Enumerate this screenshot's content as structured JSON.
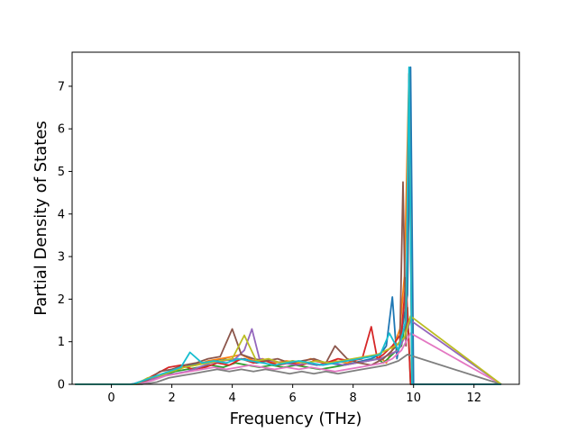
{
  "chart_data": {
    "type": "line",
    "title": "",
    "xlabel": "Frequency (THz)",
    "ylabel": "Partial Density of States",
    "xlim": [
      -1.3,
      13.5
    ],
    "ylim": [
      0,
      7.8
    ],
    "xticks": [
      0,
      2,
      4,
      6,
      8,
      10,
      12
    ],
    "yticks": [
      0,
      1,
      2,
      3,
      4,
      5,
      6,
      7
    ],
    "x_range_of_curves": [
      -1.2,
      12.9
    ],
    "grid": false,
    "legend": "none",
    "colors": [
      "#1f77b4",
      "#ff7f0e",
      "#2ca02c",
      "#d62728",
      "#9467bd",
      "#8c564b",
      "#e377c2",
      "#7f7f7f",
      "#bcbd22",
      "#17becf"
    ],
    "series": [
      {
        "x": [
          -1.2,
          0.6,
          1.1,
          1.4,
          1.8,
          2.2,
          2.6,
          3.0,
          3.3,
          3.7,
          4.0,
          4.4,
          4.8,
          5.2,
          5.6,
          6.0,
          6.4,
          6.8,
          7.2,
          7.6,
          8.0,
          8.3,
          8.6,
          8.9,
          9.1,
          9.3,
          9.45,
          9.6,
          9.8,
          9.9,
          10.0,
          12.9
        ],
        "values": [
          0,
          0,
          0.05,
          0.15,
          0.25,
          0.35,
          0.45,
          0.5,
          0.55,
          0.6,
          0.55,
          0.6,
          0.5,
          0.55,
          0.5,
          0.55,
          0.5,
          0.45,
          0.5,
          0.45,
          0.5,
          0.55,
          0.6,
          0.7,
          0.9,
          2.05,
          0.6,
          1.2,
          2.1,
          7.45,
          0,
          0
        ]
      },
      {
        "x": [
          -1.2,
          0.7,
          1.2,
          1.6,
          2.0,
          2.4,
          2.8,
          3.2,
          3.6,
          4.0,
          4.3,
          4.7,
          5.0,
          5.4,
          5.8,
          6.2,
          6.6,
          7.0,
          7.4,
          7.8,
          8.2,
          8.5,
          8.8,
          9.1,
          9.35,
          9.55,
          9.7,
          9.85,
          9.95,
          12.9
        ],
        "values": [
          0,
          0,
          0.1,
          0.2,
          0.3,
          0.4,
          0.45,
          0.55,
          0.6,
          0.65,
          0.7,
          0.55,
          0.6,
          0.5,
          0.55,
          0.5,
          0.6,
          0.5,
          0.55,
          0.5,
          0.6,
          0.65,
          0.7,
          0.5,
          0.9,
          1.3,
          2.55,
          7.3,
          0,
          0
        ]
      },
      {
        "x": [
          -1.2,
          0.8,
          1.3,
          1.7,
          2.1,
          2.5,
          2.9,
          3.3,
          3.7,
          4.1,
          4.5,
          4.9,
          5.3,
          5.7,
          6.1,
          6.5,
          6.9,
          7.3,
          7.7,
          8.1,
          8.5,
          8.8,
          9.0,
          9.3,
          9.6,
          9.8,
          9.9,
          12.9
        ],
        "values": [
          0,
          0,
          0.1,
          0.2,
          0.3,
          0.35,
          0.4,
          0.45,
          0.4,
          0.5,
          0.45,
          0.4,
          0.45,
          0.4,
          0.45,
          0.4,
          0.35,
          0.4,
          0.45,
          0.5,
          0.55,
          0.6,
          0.5,
          0.7,
          0.9,
          1.8,
          0,
          0
        ]
      },
      {
        "x": [
          -1.2,
          0.7,
          1.1,
          1.5,
          1.9,
          2.3,
          2.7,
          3.1,
          3.5,
          3.9,
          4.3,
          4.7,
          5.1,
          5.5,
          5.9,
          6.3,
          6.7,
          7.1,
          7.5,
          7.9,
          8.3,
          8.6,
          8.8,
          9.0,
          9.3,
          9.6,
          9.75,
          9.9,
          12.9
        ],
        "values": [
          0,
          0,
          0.1,
          0.25,
          0.4,
          0.45,
          0.35,
          0.4,
          0.5,
          0.45,
          0.6,
          0.5,
          0.55,
          0.45,
          0.5,
          0.45,
          0.55,
          0.5,
          0.6,
          0.55,
          0.6,
          1.35,
          0.6,
          0.7,
          0.9,
          1.2,
          2.5,
          0,
          0
        ]
      },
      {
        "x": [
          -1.2,
          0.9,
          1.3,
          1.7,
          2.1,
          2.5,
          2.9,
          3.3,
          3.7,
          4.1,
          4.4,
          4.65,
          4.9,
          5.3,
          5.7,
          6.1,
          6.5,
          6.9,
          7.3,
          7.7,
          8.1,
          8.5,
          8.9,
          9.2,
          9.5,
          9.7,
          9.9,
          12.9
        ],
        "values": [
          0,
          0,
          0.1,
          0.2,
          0.25,
          0.3,
          0.4,
          0.5,
          0.55,
          0.6,
          0.8,
          1.3,
          0.6,
          0.55,
          0.5,
          0.45,
          0.5,
          0.45,
          0.5,
          0.45,
          0.5,
          0.55,
          0.6,
          0.7,
          0.8,
          1.1,
          1.5,
          0
        ]
      },
      {
        "x": [
          -1.2,
          0.8,
          1.2,
          1.6,
          2.0,
          2.4,
          2.8,
          3.2,
          3.6,
          4.0,
          4.3,
          4.7,
          5.1,
          5.5,
          5.9,
          6.3,
          6.7,
          7.1,
          7.4,
          7.8,
          8.2,
          8.6,
          9.0,
          9.3,
          9.55,
          9.65,
          9.75,
          9.85,
          9.95,
          12.9
        ],
        "values": [
          0,
          0,
          0.1,
          0.3,
          0.35,
          0.45,
          0.5,
          0.6,
          0.65,
          1.3,
          0.7,
          0.6,
          0.55,
          0.6,
          0.5,
          0.55,
          0.6,
          0.5,
          0.9,
          0.6,
          0.5,
          0.45,
          0.6,
          0.8,
          1.0,
          4.75,
          0.9,
          7.3,
          0,
          0
        ]
      },
      {
        "x": [
          -1.2,
          0.9,
          1.4,
          1.8,
          2.2,
          2.6,
          3.0,
          3.4,
          3.8,
          4.2,
          4.6,
          5.0,
          5.4,
          5.8,
          6.2,
          6.6,
          7.0,
          7.4,
          7.8,
          8.2,
          8.6,
          9.0,
          9.3,
          9.6,
          9.9,
          12.9
        ],
        "values": [
          0,
          0,
          0.1,
          0.2,
          0.25,
          0.3,
          0.35,
          0.4,
          0.35,
          0.4,
          0.45,
          0.4,
          0.35,
          0.4,
          0.35,
          0.4,
          0.35,
          0.3,
          0.35,
          0.4,
          0.45,
          0.5,
          0.6,
          0.8,
          1.2,
          0
        ]
      },
      {
        "x": [
          -1.2,
          1.0,
          1.5,
          1.9,
          2.3,
          2.7,
          3.1,
          3.5,
          3.9,
          4.3,
          4.7,
          5.1,
          5.5,
          5.9,
          6.3,
          6.7,
          7.1,
          7.5,
          7.9,
          8.3,
          8.7,
          9.1,
          9.5,
          9.8,
          12.9
        ],
        "values": [
          0,
          0,
          0.05,
          0.15,
          0.2,
          0.25,
          0.3,
          0.35,
          0.3,
          0.35,
          0.3,
          0.35,
          0.3,
          0.25,
          0.3,
          0.25,
          0.3,
          0.25,
          0.3,
          0.35,
          0.4,
          0.45,
          0.55,
          0.7,
          0
        ]
      },
      {
        "x": [
          -1.2,
          0.8,
          1.2,
          1.6,
          2.0,
          2.4,
          2.8,
          3.2,
          3.6,
          4.0,
          4.4,
          4.8,
          5.2,
          5.6,
          6.0,
          6.4,
          6.8,
          7.2,
          7.6,
          8.0,
          8.4,
          8.8,
          9.1,
          9.4,
          9.7,
          9.9,
          12.9
        ],
        "values": [
          0,
          0,
          0.15,
          0.2,
          0.3,
          0.4,
          0.45,
          0.5,
          0.55,
          0.6,
          1.15,
          0.55,
          0.6,
          0.5,
          0.55,
          0.5,
          0.55,
          0.5,
          0.55,
          0.6,
          0.65,
          0.7,
          0.8,
          0.9,
          1.1,
          1.6,
          0
        ]
      },
      {
        "x": [
          -1.2,
          0.7,
          1.1,
          1.5,
          1.9,
          2.3,
          2.6,
          3.0,
          3.4,
          3.8,
          4.2,
          4.6,
          5.0,
          5.4,
          5.8,
          6.2,
          6.6,
          7.0,
          7.4,
          7.8,
          8.2,
          8.6,
          8.9,
          9.2,
          9.5,
          9.75,
          9.85,
          9.95,
          12.9
        ],
        "values": [
          0,
          0,
          0.1,
          0.2,
          0.3,
          0.4,
          0.75,
          0.5,
          0.55,
          0.5,
          0.6,
          0.55,
          0.5,
          0.45,
          0.5,
          0.55,
          0.5,
          0.45,
          0.5,
          0.55,
          0.6,
          0.65,
          0.7,
          1.2,
          0.8,
          1.5,
          7.45,
          0,
          0
        ]
      }
    ]
  }
}
